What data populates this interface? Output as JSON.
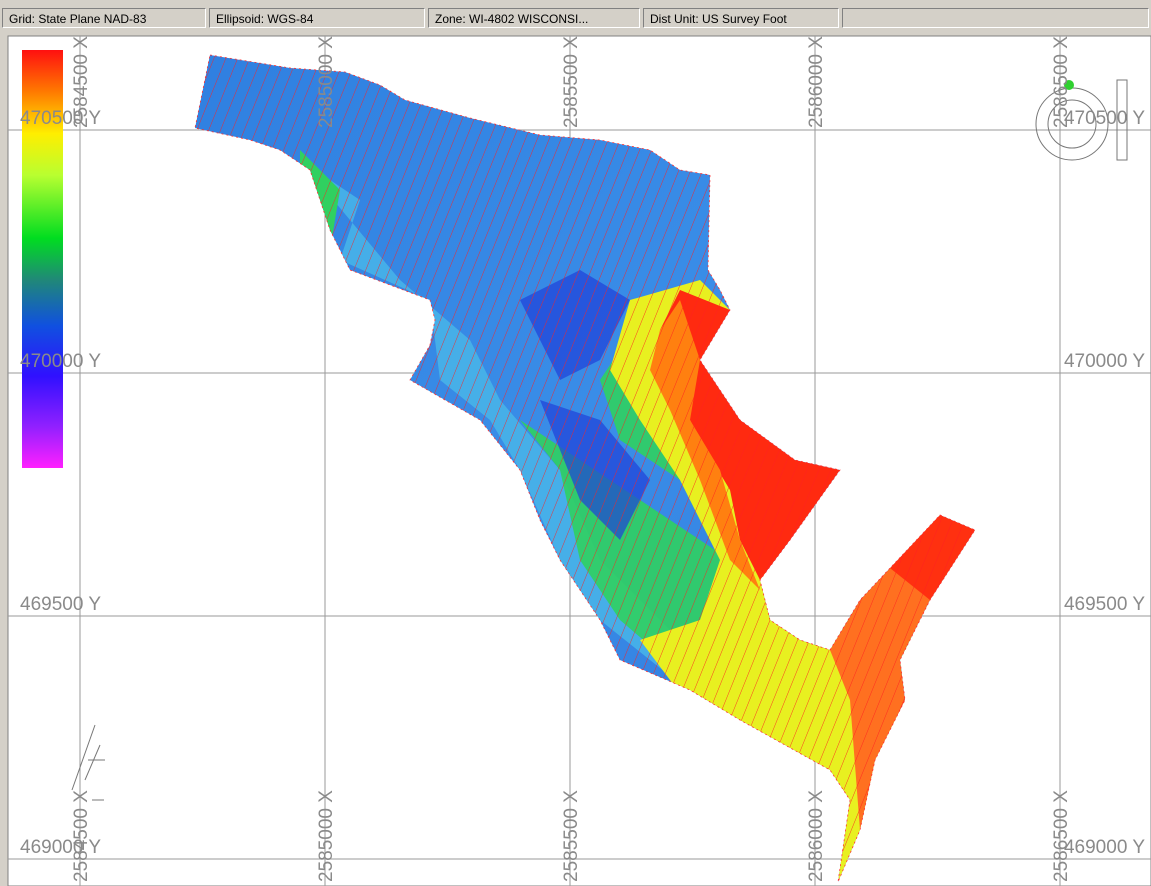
{
  "status_bar": {
    "fields": [
      "Grid: State Plane NAD-83",
      "Ellipsoid: WGS-84",
      "Zone: WI-4802 WISCONSI...",
      "Dist Unit: US Survey Foot"
    ]
  },
  "map": {
    "x_grid_labels": [
      "2584500 X",
      "2585000 X",
      "2585500 X",
      "2586000 X",
      "2586500 X"
    ],
    "y_grid_labels": [
      "470500 Y",
      "470000 Y",
      "469500 Y",
      "469000 Y"
    ]
  }
}
